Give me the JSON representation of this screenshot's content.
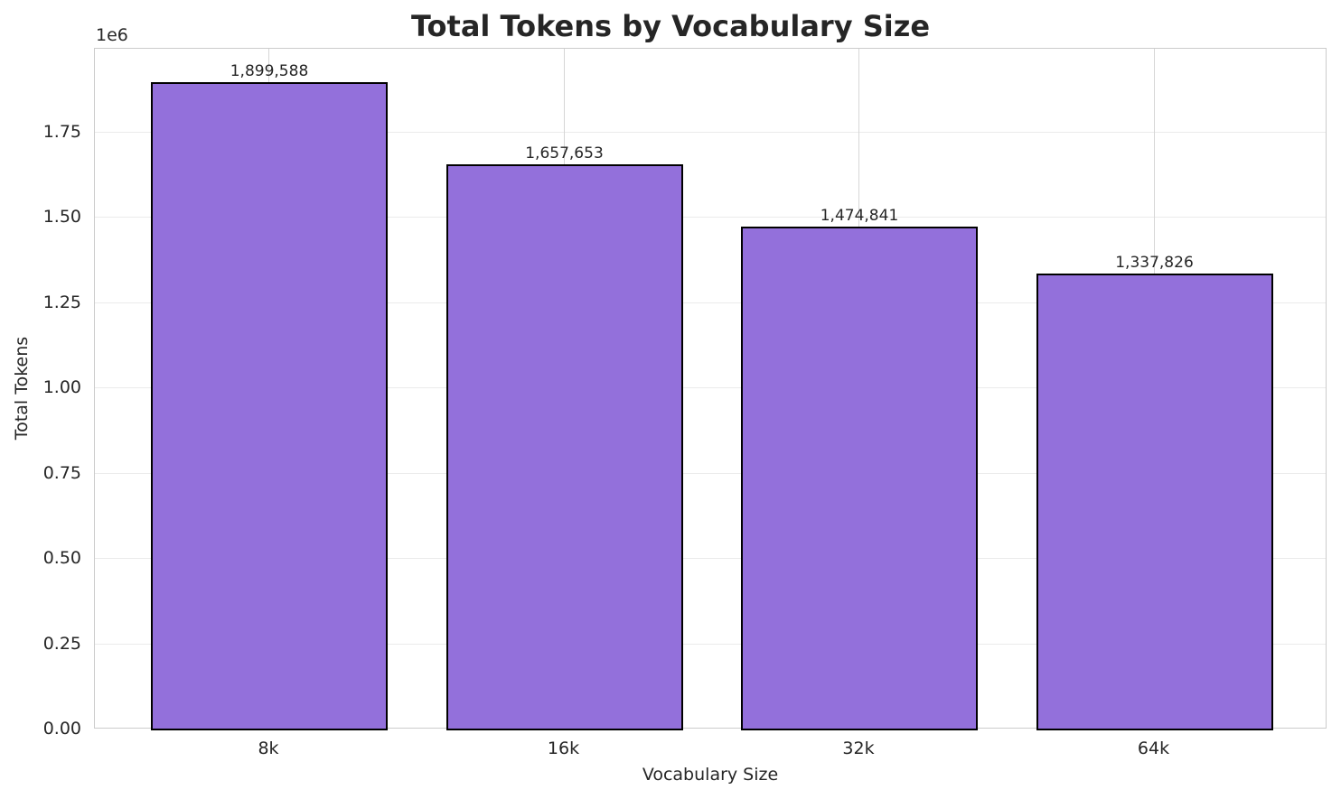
{
  "chart_data": {
    "type": "bar",
    "title": "Total Tokens by Vocabulary Size",
    "xlabel": "Vocabulary Size",
    "ylabel": "Total Tokens",
    "y_offset_label": "1e6",
    "categories": [
      "8k",
      "16k",
      "32k",
      "64k"
    ],
    "values": [
      1899588,
      1657653,
      1474841,
      1337826
    ],
    "value_labels": [
      "1,899,588",
      "1,657,653",
      "1,474,841",
      "1,337,826"
    ],
    "yticks": [
      "0.00",
      "0.25",
      "0.50",
      "0.75",
      "1.00",
      "1.25",
      "1.50",
      "1.75"
    ],
    "ylim": [
      0,
      1995000
    ],
    "grid": true,
    "bar_color": "#9370db",
    "edge_color": "#000000",
    "legend": null
  }
}
